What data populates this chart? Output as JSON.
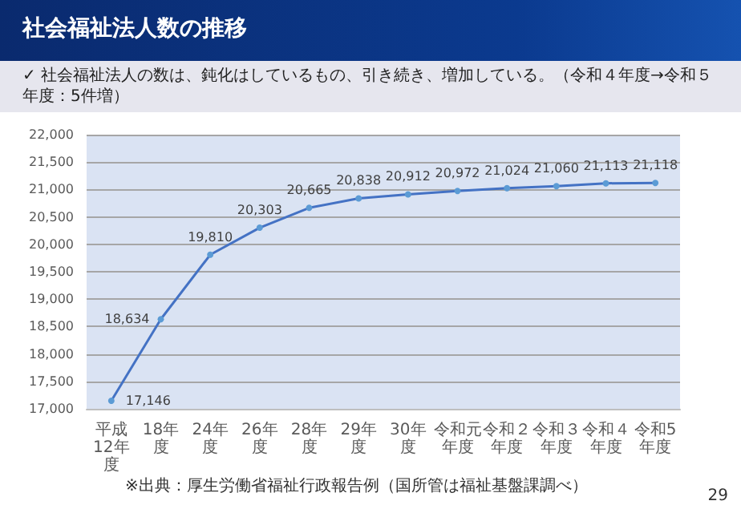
{
  "chart_data": {
    "type": "line",
    "title": "社会福祉法人数の推移",
    "subtitle": "✓ 社会福祉法人の数は、鈍化はしているもの、引き続き、増加している。（令和４年度→令和５年度：5件増）",
    "categories": [
      "平成12年度",
      "18年度",
      "24年度",
      "26年度",
      "28年度",
      "29年度",
      "30年度",
      "令和元年度",
      "令和２年度",
      "令和３年度",
      "令和４年度",
      "令和5年度"
    ],
    "series": [
      {
        "color": "#4472c4",
        "values": [
          17146,
          18634,
          19810,
          20303,
          20665,
          20838,
          20912,
          20972,
          21024,
          21060,
          21113,
          21118
        ],
        "value_labels": [
          "17,146",
          "18,634",
          "19,810",
          "20,303",
          "20,665",
          "20,838",
          "20,912",
          "20,972",
          "21,024",
          "21,060",
          "21,113",
          "21,118"
        ]
      }
    ],
    "ylim": [
      17000,
      22000
    ],
    "yticks": [
      {
        "value": 17000,
        "label": "17,000"
      },
      {
        "value": 17500,
        "label": "17,500"
      },
      {
        "value": 18000,
        "label": "18,000"
      },
      {
        "value": 18500,
        "label": "18,500"
      },
      {
        "value": 19000,
        "label": "19,000"
      },
      {
        "value": 19500,
        "label": "19,500"
      },
      {
        "value": 20000,
        "label": "20,000"
      },
      {
        "value": 20500,
        "label": "20,500"
      },
      {
        "value": 21000,
        "label": "21,000"
      },
      {
        "value": 21500,
        "label": "21,500"
      },
      {
        "value": 22000,
        "label": "22,000"
      }
    ],
    "grid": "y",
    "marker": "circle",
    "line_style": "solid",
    "annotations": [
      "※出典：厚生労働省福祉行政報告例（国所管は福祉基盤課調べ）",
      "29"
    ]
  }
}
